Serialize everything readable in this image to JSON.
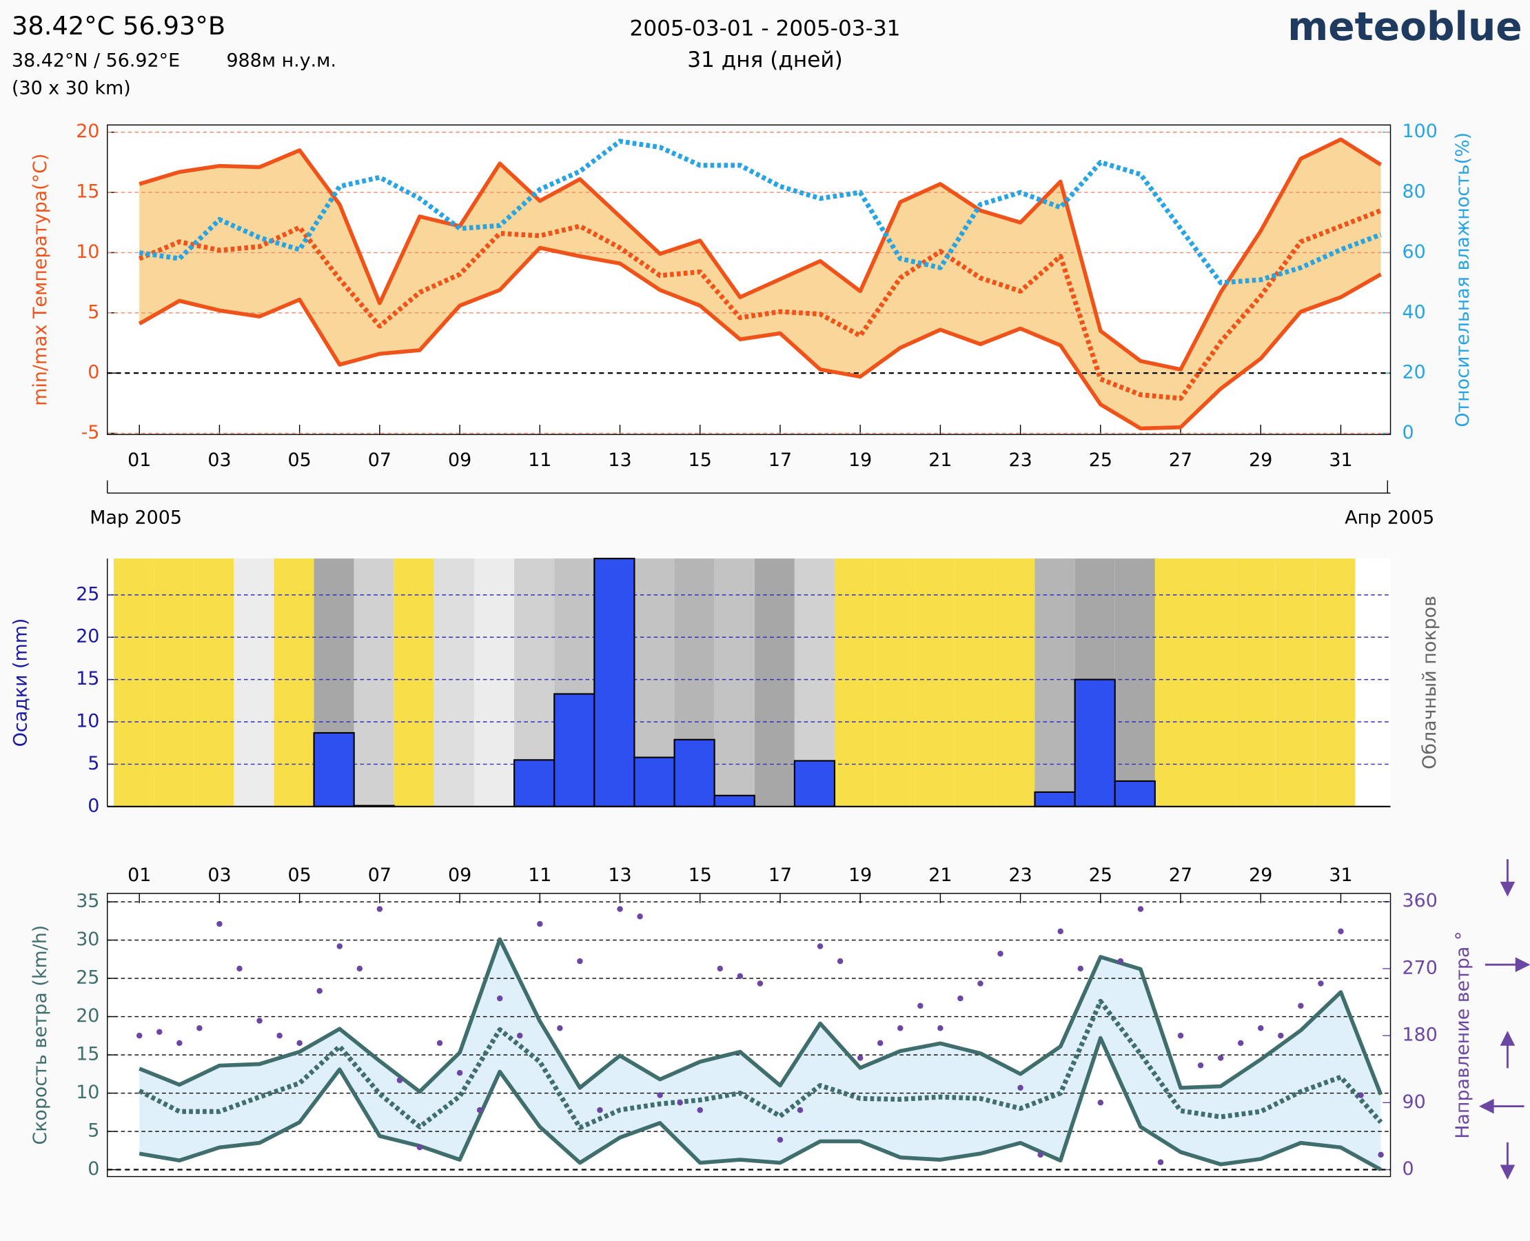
{
  "header": {
    "title": "38.42°C 56.93°B",
    "coords": "38.42°N / 56.92°E",
    "elevation": "988м н.у.м.",
    "resolution": "(30 x 30 km)",
    "period": "2005-03-01 - 2005-03-31",
    "days": "31 дня (дней)",
    "brand": "meteoblue",
    "month_start": "Мар 2005",
    "month_end": "Апр 2005"
  },
  "chart_data": [
    {
      "type": "line",
      "x": [
        1,
        2,
        3,
        4,
        5,
        6,
        7,
        8,
        9,
        10,
        11,
        12,
        13,
        14,
        15,
        16,
        17,
        18,
        19,
        20,
        21,
        22,
        23,
        24,
        25,
        26,
        27,
        28,
        29,
        30,
        31,
        32
      ],
      "xlim": [
        0.2,
        32.24
      ],
      "xticks": [
        {
          "value": 1,
          "label": "01"
        },
        {
          "value": 3,
          "label": "03"
        },
        {
          "value": 5,
          "label": "05"
        },
        {
          "value": 7,
          "label": "07"
        },
        {
          "value": 9,
          "label": "09"
        },
        {
          "value": 11,
          "label": "11"
        },
        {
          "value": 13,
          "label": "13"
        },
        {
          "value": 15,
          "label": "15"
        },
        {
          "value": 17,
          "label": "17"
        },
        {
          "value": 19,
          "label": "19"
        },
        {
          "value": 21,
          "label": "21"
        },
        {
          "value": 23,
          "label": "23"
        },
        {
          "value": 25,
          "label": "25"
        },
        {
          "value": 27,
          "label": "27"
        },
        {
          "value": 29,
          "label": "29"
        },
        {
          "value": 31,
          "label": "31"
        }
      ],
      "ylabel": "min/max Температура(°C)",
      "y2label": "Относительная влажность(%)",
      "ylim": [
        -5.1,
        20.6
      ],
      "yticks": [
        -5,
        0,
        5,
        10,
        15,
        20
      ],
      "y2lim": [
        -0.4,
        102.4
      ],
      "y2ticks": [
        0,
        20,
        40,
        60,
        80,
        100
      ],
      "grid": true,
      "band_color": "#f9d69a",
      "series": [
        {
          "color": "#f0531a",
          "line_style": "solid",
          "values": [
            15.7,
            16.7,
            17.2,
            17.1,
            18.5,
            14.0,
            5.8,
            13.0,
            12.2,
            17.4,
            14.3,
            16.1,
            13.0,
            9.9,
            11.0,
            6.3,
            7.8,
            9.3,
            6.8,
            14.2,
            15.7,
            13.5,
            12.5,
            15.9,
            3.5,
            1.0,
            0.3,
            6.7,
            11.8,
            17.8,
            19.4,
            17.3
          ]
        },
        {
          "color": "#f0531a",
          "line_style": "solid",
          "values": [
            4.1,
            6.0,
            5.2,
            4.7,
            6.1,
            0.7,
            1.6,
            1.9,
            5.6,
            6.9,
            10.4,
            9.7,
            9.1,
            6.9,
            5.6,
            2.8,
            3.3,
            0.3,
            -0.3,
            2.1,
            3.6,
            2.4,
            3.7,
            2.3,
            -2.6,
            -4.6,
            -4.5,
            -1.3,
            1.2,
            5.1,
            6.3,
            8.2
          ]
        },
        {
          "color": "#f0531a",
          "line_style": "dotted",
          "values": [
            9.5,
            10.9,
            10.2,
            10.5,
            12.1,
            7.8,
            3.9,
            6.7,
            8.2,
            11.6,
            11.4,
            12.2,
            10.4,
            8.1,
            8.4,
            4.6,
            5.1,
            4.9,
            3.1,
            7.9,
            10.1,
            7.9,
            6.8,
            9.7,
            -0.5,
            -1.8,
            -2.1,
            2.6,
            6.4,
            10.9,
            12.2,
            13.5
          ]
        },
        {
          "color": "#28a4e2",
          "line_style": "dotted",
          "axis": "y2",
          "values": [
            60,
            58,
            71,
            65,
            61,
            82,
            85,
            78,
            68,
            69,
            81,
            87,
            97,
            95,
            89,
            89,
            82,
            78,
            80,
            58,
            55,
            76,
            80,
            75,
            90,
            86,
            68,
            50,
            51,
            55,
            61,
            66
          ]
        }
      ]
    },
    {
      "type": "bar",
      "x": [
        1,
        2,
        3,
        4,
        5,
        6,
        7,
        8,
        9,
        10,
        11,
        12,
        13,
        14,
        15,
        16,
        17,
        18,
        19,
        20,
        21,
        22,
        23,
        24,
        25,
        26,
        27,
        28,
        29,
        30,
        31
      ],
      "xlim": [
        0.2,
        32.24
      ],
      "ylabel": "Осадки (mm)",
      "y2label": "Облачный покров",
      "ylim": [
        0,
        29.3
      ],
      "yticks": [
        0,
        5,
        10,
        15,
        20,
        25
      ],
      "grid": true,
      "color": "#2f50f0",
      "values": [
        0,
        0,
        0,
        0,
        0,
        8.7,
        0.1,
        0,
        0,
        0,
        5.5,
        13.3,
        29.3,
        5.8,
        7.9,
        1.3,
        0,
        5.4,
        0,
        0,
        0,
        0,
        0,
        1.7,
        15.0,
        3.0,
        0,
        0,
        0,
        0,
        0
      ],
      "cloud_cover": [
        10,
        15,
        10,
        30,
        20,
        80,
        50,
        20,
        40,
        30,
        50,
        60,
        60,
        60,
        70,
        60,
        80,
        50,
        10,
        0,
        10,
        20,
        20,
        70,
        80,
        80,
        20,
        10,
        10,
        10,
        20
      ]
    },
    {
      "type": "line",
      "x": [
        1,
        2,
        3,
        4,
        5,
        6,
        7,
        8,
        9,
        10,
        11,
        12,
        13,
        14,
        15,
        16,
        17,
        18,
        19,
        20,
        21,
        22,
        23,
        24,
        25,
        26,
        27,
        28,
        29,
        30,
        31,
        32
      ],
      "xlim": [
        0.2,
        32.24
      ],
      "xticks": [
        {
          "value": 1,
          "label": "01"
        },
        {
          "value": 3,
          "label": "03"
        },
        {
          "value": 5,
          "label": "05"
        },
        {
          "value": 7,
          "label": "07"
        },
        {
          "value": 9,
          "label": "09"
        },
        {
          "value": 11,
          "label": "11"
        },
        {
          "value": 13,
          "label": "13"
        },
        {
          "value": 15,
          "label": "15"
        },
        {
          "value": 17,
          "label": "17"
        },
        {
          "value": 19,
          "label": "19"
        },
        {
          "value": 21,
          "label": "21"
        },
        {
          "value": 23,
          "label": "23"
        },
        {
          "value": 25,
          "label": "25"
        },
        {
          "value": 27,
          "label": "27"
        },
        {
          "value": 29,
          "label": "29"
        },
        {
          "value": 31,
          "label": "31"
        }
      ],
      "ylabel": "Скорость ветра (km/h)",
      "y2label": "Направление ветра °",
      "ylim": [
        -0.9,
        36.1
      ],
      "yticks": [
        0,
        5,
        10,
        15,
        20,
        25,
        30,
        35
      ],
      "y2lim": [
        -9.3,
        371
      ],
      "y2ticks": [
        0,
        90,
        180,
        270,
        360
      ],
      "grid": true,
      "band_color": "#e0f0fa",
      "series": [
        {
          "color": "#3f6e6c",
          "line_style": "solid",
          "values": [
            13.2,
            11.1,
            13.6,
            13.8,
            15.4,
            18.4,
            14.2,
            10.2,
            15.3,
            30.1,
            19.4,
            10.7,
            14.9,
            11.8,
            14.1,
            15.4,
            11.0,
            19.1,
            13.3,
            15.5,
            16.5,
            15.2,
            12.5,
            16.1,
            27.8,
            26.2,
            10.7,
            10.9,
            14.4,
            18.2,
            23.2,
            9.8
          ]
        },
        {
          "color": "#3f6e6c",
          "line_style": "solid",
          "values": [
            2.1,
            1.2,
            2.9,
            3.5,
            6.2,
            13.1,
            4.4,
            3.1,
            1.3,
            12.8,
            5.6,
            0.9,
            4.2,
            6.1,
            0.9,
            1.3,
            0.9,
            3.7,
            3.7,
            1.6,
            1.3,
            2.1,
            3.5,
            1.2,
            17.2,
            5.6,
            2.3,
            0.7,
            1.4,
            3.5,
            2.9,
            0.0
          ]
        },
        {
          "color": "#3f6e6c",
          "line_style": "dotted",
          "values": [
            10.3,
            7.6,
            7.6,
            9.5,
            11.3,
            16.1,
            9.9,
            5.6,
            9.6,
            18.3,
            14.1,
            5.5,
            7.8,
            8.6,
            9.1,
            10.0,
            7.0,
            11.0,
            9.3,
            9.2,
            9.5,
            9.3,
            8.0,
            10.0,
            22.0,
            15.1,
            7.7,
            6.9,
            7.6,
            10.2,
            12.1,
            6.2
          ]
        },
        {
          "color": "#6b47a3",
          "type": "scatter",
          "axis": "y2",
          "x": [
            1,
            1.5,
            2,
            2.5,
            3,
            3.5,
            4,
            4.5,
            5,
            5.5,
            6,
            6.5,
            7,
            7.5,
            8,
            8.5,
            9,
            9.5,
            10,
            10.5,
            11,
            11.5,
            12,
            12.5,
            13,
            13.5,
            14,
            14.5,
            15,
            15.5,
            16,
            16.5,
            17,
            17.5,
            18,
            18.5,
            19,
            19.5,
            20,
            20.5,
            21,
            21.5,
            22,
            22.5,
            23,
            23.5,
            24,
            24.5,
            25,
            25.5,
            26,
            26.5,
            27,
            27.5,
            28,
            28.5,
            29,
            29.5,
            30,
            30.5,
            31,
            31.5,
            32
          ],
          "values": [
            180,
            185,
            170,
            190,
            330,
            270,
            200,
            180,
            170,
            240,
            300,
            270,
            350,
            120,
            30,
            170,
            130,
            80,
            230,
            180,
            330,
            190,
            280,
            80,
            350,
            340,
            100,
            90,
            80,
            270,
            260,
            250,
            40,
            80,
            300,
            280,
            150,
            170,
            190,
            220,
            190,
            230,
            250,
            290,
            110,
            20,
            320,
            270,
            90,
            280,
            350,
            10,
            180,
            140,
            150,
            170,
            190,
            180,
            220,
            250,
            320,
            100,
            20
          ]
        }
      ]
    }
  ]
}
